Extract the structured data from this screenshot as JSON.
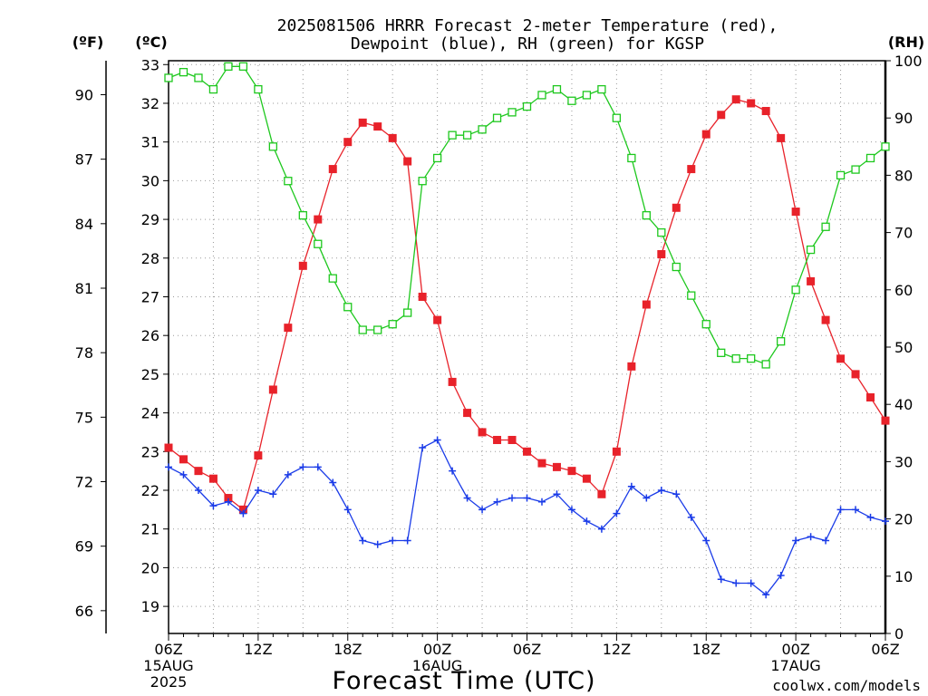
{
  "chart_data": {
    "type": "line",
    "title_line1": "2025081506 HRRR Forecast 2-meter Temperature (red),",
    "title_line2": "Dewpoint (blue), RH (green) for KGSP",
    "xlabel": "Forecast Time (UTC)",
    "credit": "coolwx.com/models",
    "unit_f": "(ºF)",
    "unit_c": "(ºC)",
    "unit_rh": "(RH)",
    "x_ticks": [
      {
        "h": 0,
        "label": "06Z",
        "sub": "15AUG",
        "sub2": "2025"
      },
      {
        "h": 6,
        "label": "12Z"
      },
      {
        "h": 12,
        "label": "18Z"
      },
      {
        "h": 18,
        "label": "00Z",
        "sub": "16AUG"
      },
      {
        "h": 24,
        "label": "06Z"
      },
      {
        "h": 30,
        "label": "12Z"
      },
      {
        "h": 36,
        "label": "18Z"
      },
      {
        "h": 42,
        "label": "00Z",
        "sub": "17AUG"
      },
      {
        "h": 48,
        "label": "06Z"
      }
    ],
    "c_ticks": [
      19,
      20,
      21,
      22,
      23,
      24,
      25,
      26,
      27,
      28,
      29,
      30,
      31,
      32,
      33
    ],
    "f_ticks": [
      66,
      69,
      72,
      75,
      78,
      81,
      84,
      87,
      90
    ],
    "rh_ticks": [
      0,
      10,
      20,
      30,
      40,
      50,
      60,
      70,
      80,
      90,
      100
    ],
    "temp_ylim": [
      18.3,
      33.1
    ],
    "rh_ylim": [
      0,
      100
    ],
    "colors": {
      "temperature": "#e8222a",
      "dewpoint": "#1a3be8",
      "rh": "#1ec81e",
      "grid": "#9a9a9a",
      "credit": "#e02020"
    },
    "series": [
      {
        "name": "Temperature",
        "axis": "c",
        "marker": "filled-square",
        "values": [
          23.1,
          22.8,
          22.5,
          22.3,
          21.8,
          21.5,
          22.9,
          24.6,
          26.2,
          27.8,
          29.0,
          30.3,
          31.0,
          31.5,
          31.4,
          31.1,
          30.5,
          27.0,
          26.4,
          24.8,
          24.0,
          23.5,
          23.3,
          23.3,
          23.0,
          22.7,
          22.6,
          22.5,
          22.3,
          21.9,
          23.0,
          25.2,
          26.8,
          28.1,
          29.3,
          30.3,
          31.2,
          31.7,
          32.1,
          32.0,
          31.8,
          31.1,
          29.2,
          27.4,
          26.4,
          25.4,
          25.0,
          24.4,
          23.8
        ]
      },
      {
        "name": "Dewpoint",
        "axis": "c",
        "marker": "plus",
        "values": [
          22.6,
          22.4,
          22.0,
          21.6,
          21.7,
          21.4,
          22.0,
          21.9,
          22.4,
          22.6,
          22.6,
          22.2,
          21.5,
          20.7,
          20.6,
          20.7,
          20.7,
          23.1,
          23.3,
          22.5,
          21.8,
          21.5,
          21.7,
          21.8,
          21.8,
          21.7,
          21.9,
          21.5,
          21.2,
          21.0,
          21.4,
          22.1,
          21.8,
          22.0,
          21.9,
          21.3,
          20.7,
          19.7,
          19.6,
          19.6,
          19.3,
          19.8,
          20.7,
          20.8,
          20.7,
          21.5,
          21.5,
          21.3,
          21.2
        ]
      },
      {
        "name": "RH",
        "axis": "rh",
        "marker": "open-square",
        "values": [
          97,
          98,
          97,
          95,
          99,
          99,
          95,
          85,
          79,
          73,
          68,
          62,
          57,
          53,
          53,
          54,
          56,
          79,
          83,
          87,
          87,
          88,
          90,
          91,
          92,
          94,
          95,
          93,
          94,
          95,
          90,
          83,
          73,
          70,
          64,
          59,
          54,
          49,
          48,
          48,
          47,
          51,
          60,
          67,
          71,
          80,
          81,
          83,
          85
        ]
      }
    ]
  }
}
